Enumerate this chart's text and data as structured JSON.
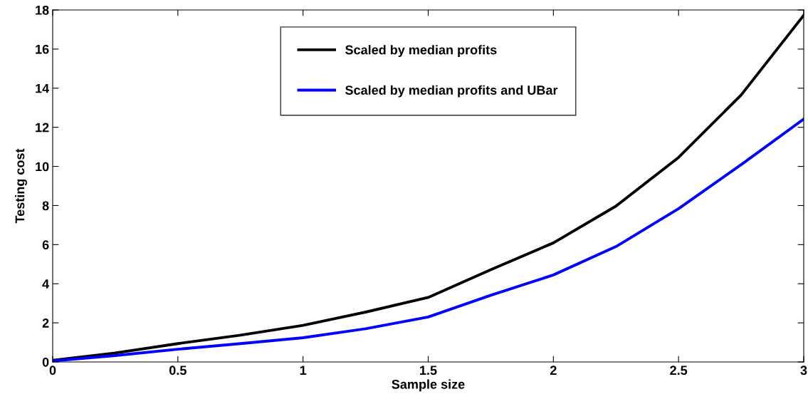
{
  "chart_data": {
    "type": "line",
    "xlabel": "Sample size",
    "ylabel": "Testing cost",
    "x": [
      0,
      0.25,
      0.5,
      0.75,
      1,
      1.25,
      1.5,
      1.75,
      2,
      2.25,
      2.5,
      2.75,
      3
    ],
    "series": [
      {
        "name": "Scaled by median profits",
        "color": "#000000",
        "values": [
          0.08,
          0.46,
          0.94,
          1.37,
          1.87,
          2.55,
          3.3,
          4.72,
          6.09,
          7.97,
          10.46,
          13.65,
          17.73
        ]
      },
      {
        "name": "Scaled by median profits and UBar",
        "color": "#0000ff",
        "values": [
          0.05,
          0.33,
          0.65,
          0.94,
          1.24,
          1.7,
          2.3,
          3.41,
          4.45,
          5.9,
          7.84,
          10.09,
          12.42
        ]
      }
    ],
    "xlim": [
      0,
      3
    ],
    "xticks": [
      0,
      0.5,
      1,
      1.5,
      2,
      2.5,
      3
    ],
    "ylim": [
      0,
      18
    ],
    "yticks": [
      0,
      2,
      4,
      6,
      8,
      10,
      12,
      14,
      16,
      18
    ],
    "grid": false,
    "legend": "top",
    "marker": "none",
    "line_style": "solid"
  }
}
